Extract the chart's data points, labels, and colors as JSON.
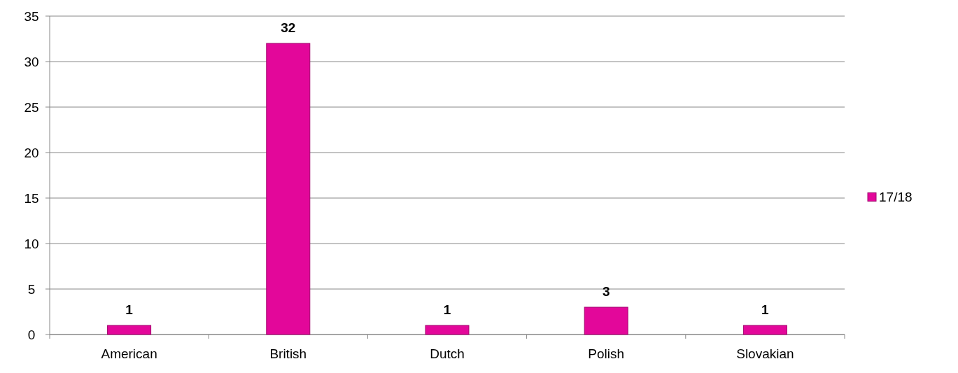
{
  "chart_data": {
    "type": "bar",
    "categories": [
      "American",
      "British",
      "Dutch",
      "Polish",
      "Slovakian"
    ],
    "series": [
      {
        "name": "17/18",
        "color": "#e3079a",
        "values": [
          1,
          32,
          1,
          3,
          1
        ]
      }
    ],
    "ylim": [
      0,
      35
    ],
    "yticks": [
      0,
      5,
      10,
      15,
      20,
      25,
      30,
      35
    ],
    "grid": "y",
    "legend": "right",
    "data_labels": true
  }
}
